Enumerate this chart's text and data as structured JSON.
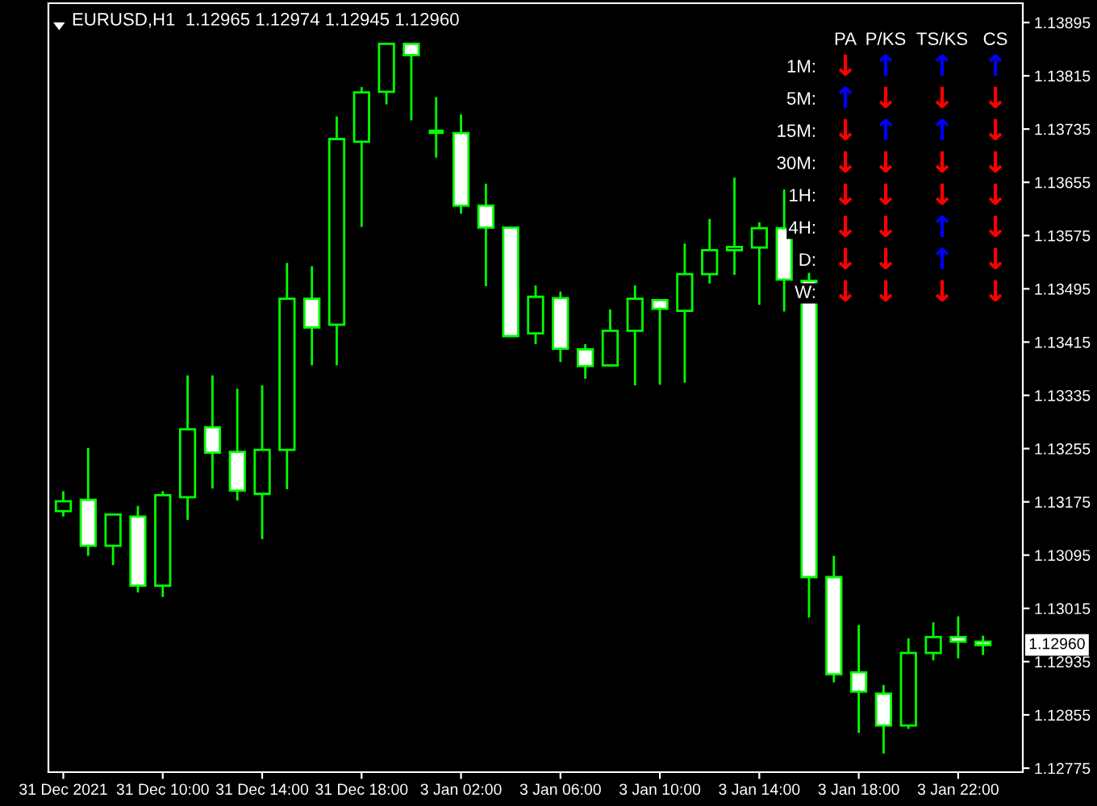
{
  "chart_data": [
    {
      "type": "candlestick",
      "title": "EURUSD,H1  1.12965 1.12974 1.12945 1.12960",
      "categories": [
        "31 Dec 2021",
        null,
        null,
        null,
        "31 Dec 10:00",
        null,
        null,
        null,
        "31 Dec 14:00",
        null,
        null,
        null,
        "31 Dec 18:00",
        null,
        null,
        null,
        "3 Jan 02:00",
        null,
        null,
        null,
        "3 Jan 06:00",
        null,
        null,
        null,
        "3 Jan 10:00",
        null,
        null,
        null,
        "3 Jan 14:00",
        null,
        null,
        null,
        "3 Jan 18:00",
        null,
        null,
        null,
        "3 Jan 22:00",
        null
      ],
      "ohlc": [
        [
          1.13161,
          1.13191,
          1.13153,
          1.13176
        ],
        [
          1.13178,
          1.13256,
          1.13094,
          1.13109
        ],
        [
          1.13109,
          1.13156,
          1.1308,
          1.13156
        ],
        [
          1.13153,
          1.13169,
          1.13039,
          1.13049
        ],
        [
          1.13049,
          1.13191,
          1.13032,
          1.13185
        ],
        [
          1.13182,
          1.13365,
          1.13148,
          1.13284
        ],
        [
          1.13287,
          1.13365,
          1.13195,
          1.13249
        ],
        [
          1.1325,
          1.13345,
          1.13177,
          1.13192
        ],
        [
          1.13187,
          1.1335,
          1.13119,
          1.13253
        ],
        [
          1.13253,
          1.13534,
          1.13194,
          1.1348
        ],
        [
          1.1348,
          1.13529,
          1.1338,
          1.13437
        ],
        [
          1.13441,
          1.13754,
          1.1338,
          1.1372
        ],
        [
          1.13716,
          1.13798,
          1.13588,
          1.1379
        ],
        [
          1.13791,
          1.13863,
          1.13772,
          1.13863
        ],
        [
          1.13863,
          1.13863,
          1.13748,
          1.13846
        ],
        [
          1.13731,
          1.13783,
          1.13692,
          1.13731
        ],
        [
          1.13729,
          1.13757,
          1.13608,
          1.1362
        ],
        [
          1.1362,
          1.13653,
          1.13499,
          1.13587
        ],
        [
          1.13587,
          1.13587,
          1.13424,
          1.13424
        ],
        [
          1.13428,
          1.135,
          1.13412,
          1.13483
        ],
        [
          1.13481,
          1.13491,
          1.13385,
          1.13405
        ],
        [
          1.13404,
          1.13412,
          1.1336,
          1.13379
        ],
        [
          1.1338,
          1.13464,
          1.13378,
          1.13432
        ],
        [
          1.13432,
          1.135,
          1.1335,
          1.1348
        ],
        [
          1.13478,
          1.13478,
          1.13351,
          1.13465
        ],
        [
          1.13462,
          1.13563,
          1.13354,
          1.13517
        ],
        [
          1.13517,
          1.136,
          1.13503,
          1.13553
        ],
        [
          1.13553,
          1.13662,
          1.13516,
          1.13558
        ],
        [
          1.13557,
          1.13595,
          1.13471,
          1.13586
        ],
        [
          1.13586,
          1.13644,
          1.13461,
          1.13509
        ],
        [
          1.13507,
          1.13519,
          1.13001,
          1.13062
        ],
        [
          1.13062,
          1.13094,
          1.12904,
          1.12916
        ],
        [
          1.12919,
          1.1299,
          1.12828,
          1.1289
        ],
        [
          1.12887,
          1.129,
          1.12797,
          1.12839
        ],
        [
          1.12839,
          1.1297,
          1.12834,
          1.12948
        ],
        [
          1.12948,
          1.12994,
          1.12937,
          1.12972
        ],
        [
          1.12972,
          1.13003,
          1.1294,
          1.12965
        ],
        [
          1.12965,
          1.12974,
          1.12945,
          1.1296
        ]
      ],
      "color": "#00ff00",
      "colors": [
        "#000000",
        "#ffffff",
        "#000000",
        "#ffffff",
        "#000000",
        "#000000",
        "#ffffff",
        "#ffffff",
        "#000000",
        "#000000",
        "#ffffff",
        "#000000",
        "#000000",
        "#000000",
        "#ffffff",
        "#00ff00",
        "#ffffff",
        "#ffffff",
        "#ffffff",
        "#000000",
        "#ffffff",
        "#ffffff",
        "#000000",
        "#000000",
        "#ffffff",
        "#000000",
        "#000000",
        "#000000",
        "#000000",
        "#ffffff",
        "#ffffff",
        "#ffffff",
        "#ffffff",
        "#ffffff",
        "#000000",
        "#000000",
        "#ffffff",
        "#ffffff"
      ],
      "ylim": [
        1.12769,
        1.13924
      ],
      "yticks": [
        1.12775,
        1.12855,
        1.12935,
        1.13015,
        1.13095,
        1.13175,
        1.13255,
        1.13335,
        1.13415,
        1.13495,
        1.13575,
        1.13655,
        1.13735,
        1.13815,
        1.13895
      ],
      "annotations": [
        "1.12960"
      ],
      "grid": false,
      "legend": false
    },
    {
      "type": "other",
      "categories": [
        "PA",
        "P/KS",
        "TS/KS",
        "CS"
      ],
      "y_categories": [
        "1M:",
        "5M:",
        "15M:",
        "30M:",
        "1H:",
        "4H:",
        "D:",
        "W:"
      ],
      "cell_labels": [
        [
          "↓",
          "↑",
          "↑",
          "↑"
        ],
        [
          "↑",
          "↓",
          "↓",
          "↓"
        ],
        [
          "↓",
          "↑",
          "↑",
          "↓"
        ],
        [
          "↓",
          "↓",
          "↓",
          "↓"
        ],
        [
          "↓",
          "↓",
          "↓",
          "↓"
        ],
        [
          "↓",
          "↓",
          "↑",
          "↓"
        ],
        [
          "↓",
          "↓",
          "↑",
          "↓"
        ],
        [
          "↓",
          "↓",
          "↓",
          "↓"
        ]
      ],
      "colors": [
        [
          "#ff0000",
          "#0000ff",
          "#0000ff",
          "#0000ff"
        ],
        [
          "#0000ff",
          "#ff0000",
          "#ff0000",
          "#ff0000"
        ],
        [
          "#ff0000",
          "#0000ff",
          "#0000ff",
          "#ff0000"
        ],
        [
          "#ff0000",
          "#ff0000",
          "#ff0000",
          "#ff0000"
        ],
        [
          "#ff0000",
          "#ff0000",
          "#ff0000",
          "#ff0000"
        ],
        [
          "#ff0000",
          "#ff0000",
          "#0000ff",
          "#ff0000"
        ],
        [
          "#ff0000",
          "#ff0000",
          "#0000ff",
          "#ff0000"
        ],
        [
          "#ff0000",
          "#ff0000",
          "#ff0000",
          "#ff0000"
        ]
      ]
    }
  ]
}
